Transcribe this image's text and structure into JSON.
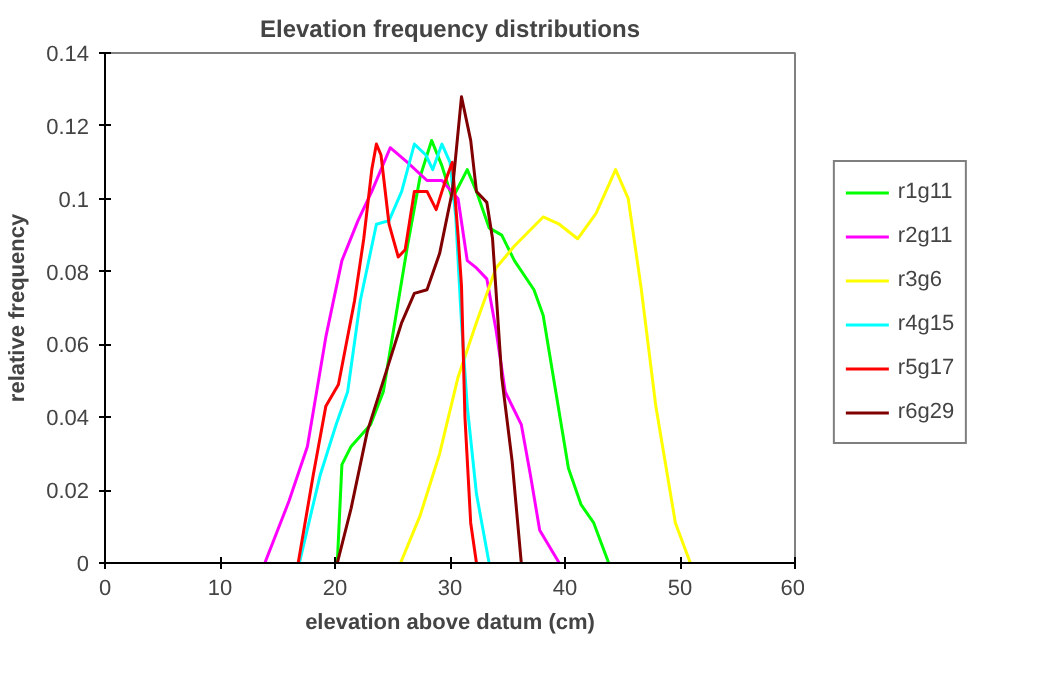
{
  "chart_data": {
    "type": "line",
    "title": "Elevation frequency distributions",
    "xlabel": "elevation above datum (cm)",
    "ylabel": "relative frequency",
    "xlim": [
      0,
      60
    ],
    "xticks": [
      0,
      10,
      20,
      30,
      40,
      50,
      60
    ],
    "ylim": [
      0,
      0.14
    ],
    "yticks": [
      0,
      0.02,
      0.04,
      0.06,
      0.08,
      0.1,
      0.12,
      0.14
    ],
    "grid": false,
    "legend": "right",
    "line_style": "solid",
    "series": [
      {
        "name": "r1g11",
        "color": "#00ff00",
        "x": [
          20.2,
          20.6,
          21.4,
          23.1,
          24.2,
          25.2,
          26.3,
          27.4,
          28.4,
          29.3,
          30.2,
          31.5,
          32.3,
          33.4,
          34.5,
          35.6,
          37.3,
          38.1,
          39.2,
          40.3,
          41.4,
          42.5,
          43.8
        ],
        "values": [
          0,
          0.027,
          0.032,
          0.038,
          0.047,
          0.066,
          0.087,
          0.106,
          0.116,
          0.109,
          0.1,
          0.108,
          0.102,
          0.092,
          0.09,
          0.083,
          0.075,
          0.068,
          0.047,
          0.026,
          0.016,
          0.011,
          0
        ]
      },
      {
        "name": "r2g11",
        "color": "#ff00ff",
        "x": [
          13.9,
          16,
          17.6,
          19.2,
          20.6,
          22,
          23.2,
          24.8,
          26.3,
          28,
          29.3,
          30.7,
          31.5,
          32.3,
          33.2,
          34,
          34.8,
          36.2,
          37,
          37.8,
          39.5
        ],
        "values": [
          0,
          0.017,
          0.032,
          0.062,
          0.083,
          0.094,
          0.102,
          0.114,
          0.11,
          0.105,
          0.105,
          0.1,
          0.083,
          0.081,
          0.078,
          0.064,
          0.047,
          0.038,
          0.024,
          0.009,
          0
        ]
      },
      {
        "name": "r3g6",
        "color": "#ffff00",
        "x": [
          25.7,
          27.4,
          29.1,
          30.7,
          32.3,
          34,
          35.6,
          38.1,
          39.5,
          41.1,
          42.7,
          44.4,
          45.5,
          46.6,
          47.9,
          49.6,
          50.9
        ],
        "values": [
          0,
          0.013,
          0.03,
          0.051,
          0.066,
          0.081,
          0.087,
          0.095,
          0.093,
          0.089,
          0.096,
          0.108,
          0.1,
          0.076,
          0.043,
          0.011,
          0
        ]
      },
      {
        "name": "r4g15",
        "color": "#00ffff",
        "x": [
          16.9,
          18.7,
          20.1,
          21.1,
          22.2,
          23.6,
          24.7,
          25.8,
          26.9,
          27.9,
          28.5,
          29.3,
          30,
          30.5,
          31,
          31.5,
          32.3,
          33.4
        ],
        "values": [
          0,
          0.024,
          0.038,
          0.047,
          0.072,
          0.093,
          0.094,
          0.102,
          0.115,
          0.112,
          0.108,
          0.115,
          0.11,
          0.095,
          0.066,
          0.043,
          0.019,
          0
        ]
      },
      {
        "name": "r5g17",
        "color": "#ff0000",
        "x": [
          16.8,
          18.1,
          19.2,
          20.3,
          21.7,
          22.5,
          23.2,
          23.6,
          24,
          24.7,
          25.5,
          26.1,
          26.9,
          28,
          28.8,
          29.5,
          30.2,
          30.7,
          31,
          31.3,
          31.8,
          32.3
        ],
        "values": [
          0,
          0.024,
          0.043,
          0.049,
          0.072,
          0.089,
          0.108,
          0.115,
          0.112,
          0.093,
          0.084,
          0.086,
          0.102,
          0.102,
          0.097,
          0.104,
          0.11,
          0.09,
          0.076,
          0.04,
          0.011,
          0
        ]
      },
      {
        "name": "r6g29",
        "color": "#800000",
        "x": [
          20.2,
          21.4,
          22.8,
          24.7,
          25.8,
          26.9,
          28,
          29.1,
          30.2,
          31,
          31.8,
          32.3,
          33.2,
          33.7,
          34.5,
          35.4,
          36.2
        ],
        "values": [
          0,
          0.015,
          0.036,
          0.055,
          0.066,
          0.074,
          0.075,
          0.085,
          0.102,
          0.128,
          0.116,
          0.102,
          0.099,
          0.089,
          0.051,
          0.028,
          0
        ]
      }
    ]
  }
}
